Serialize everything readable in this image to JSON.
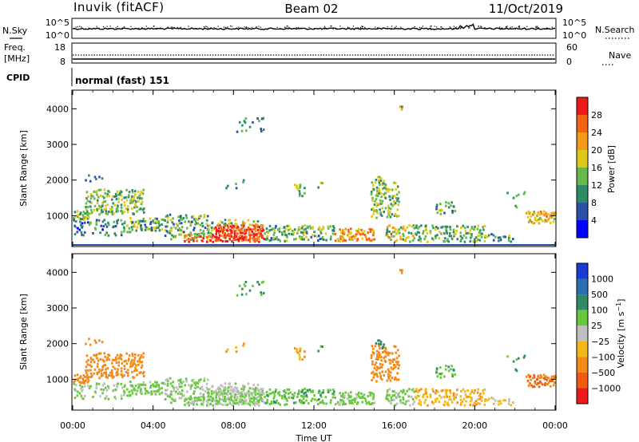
{
  "header": {
    "station": "Inuvik (fitACF)",
    "beam": "Beam 02",
    "date": "11/Oct/2019"
  },
  "top_panels": {
    "nsky_label": "N.Sky",
    "nsearch_label": "N.Search",
    "nsky_ticks": [
      "10^5",
      "10^0"
    ],
    "nsearch_ticks": [
      "10^5",
      "10^0"
    ],
    "freq_label_1": "Freq.",
    "freq_label_2": "[MHz]",
    "freq_ticks": [
      "18",
      "8"
    ],
    "nave_label": "Nave",
    "nave_ticks": [
      "60",
      "0"
    ],
    "cpid_label": "CPID",
    "cpid_value": "normal (fast) 151"
  },
  "chart_data": [
    {
      "type": "heatmap",
      "name": "power",
      "xlabel": "",
      "ylabel": "Slant Range [km]",
      "xlim": [
        0,
        24
      ],
      "ylim": [
        180,
        4500
      ],
      "yticks": [
        "1000",
        "2000",
        "3000",
        "4000"
      ],
      "colorbar": {
        "label": "Power [dB]",
        "ticks": [
          "4",
          "8",
          "12",
          "16",
          "20",
          "24",
          "28"
        ],
        "colors": [
          "#0000ff",
          "#2a4fa6",
          "#2f8a66",
          "#66b84a",
          "#e0c81a",
          "#f29a1a",
          "#f26414",
          "#ee1a1a"
        ],
        "levels": [
          0,
          4,
          8,
          12,
          16,
          20,
          24,
          28,
          32
        ]
      }
    },
    {
      "type": "heatmap",
      "name": "velocity",
      "xlabel": "Time UT",
      "ylabel": "Slant Range [km]",
      "xlim": [
        0,
        24
      ],
      "ylim": [
        180,
        4500
      ],
      "xticks": [
        "00:00",
        "04:00",
        "08:00",
        "12:00",
        "16:00",
        "20:00",
        "00:00"
      ],
      "yticks": [
        "1000",
        "2000",
        "3000",
        "4000"
      ],
      "colorbar": {
        "label": "Velocity [m s^-1]",
        "ticks": [
          "1000",
          "500",
          "100",
          "25",
          "−25",
          "−100",
          "−500",
          "−1000"
        ],
        "colors": [
          "#1a3ad6",
          "#2c70b4",
          "#2f8a66",
          "#66c83a",
          "#bfbfbf",
          "#f2b81a",
          "#f28a1a",
          "#f25a14",
          "#ee1a1a"
        ]
      }
    }
  ]
}
